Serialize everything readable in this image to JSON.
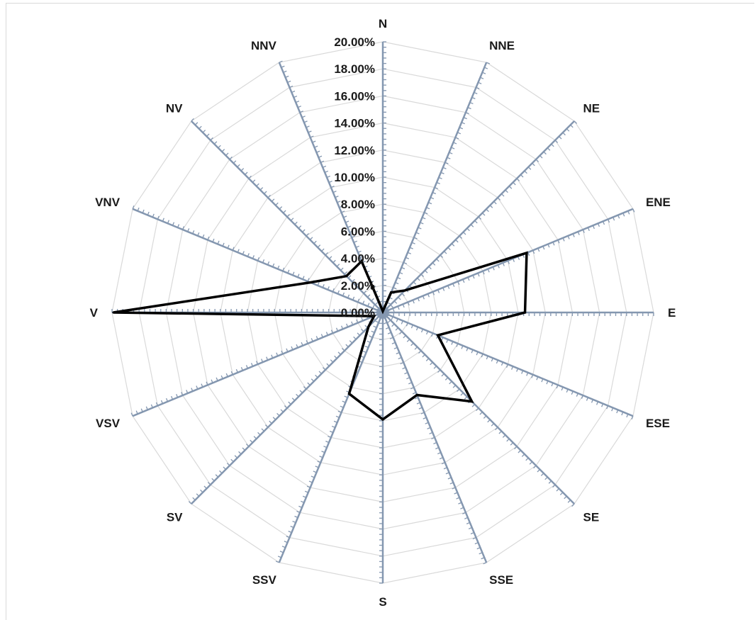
{
  "chart_data": {
    "type": "radar",
    "title": "",
    "categories": [
      "N",
      "NNE",
      "NE",
      "ENE",
      "E",
      "ESE",
      "SE",
      "SSE",
      "S",
      "SSV",
      "SV",
      "VSV",
      "V",
      "VNV",
      "NV",
      "NNV"
    ],
    "series": [
      {
        "values": [
          0.1,
          1.6,
          2.3,
          11.5,
          10.5,
          4.4,
          9.3,
          6.6,
          7.9,
          6.5,
          1.5,
          0.7,
          19.9,
          5.8,
          3.8,
          4.1
        ]
      }
    ],
    "rlim": [
      0,
      20
    ],
    "tick_labels": [
      "0.00%",
      "2.00%",
      "4.00%",
      "6.00%",
      "8.00%",
      "10.00%",
      "12.00%",
      "14.00%",
      "16.00%",
      "18.00%",
      "20.00%"
    ],
    "grid": true,
    "legend": "none",
    "colors": {
      "series_line": "#000000",
      "axis": "#8497b0",
      "grid": "#d9d9d9"
    }
  }
}
